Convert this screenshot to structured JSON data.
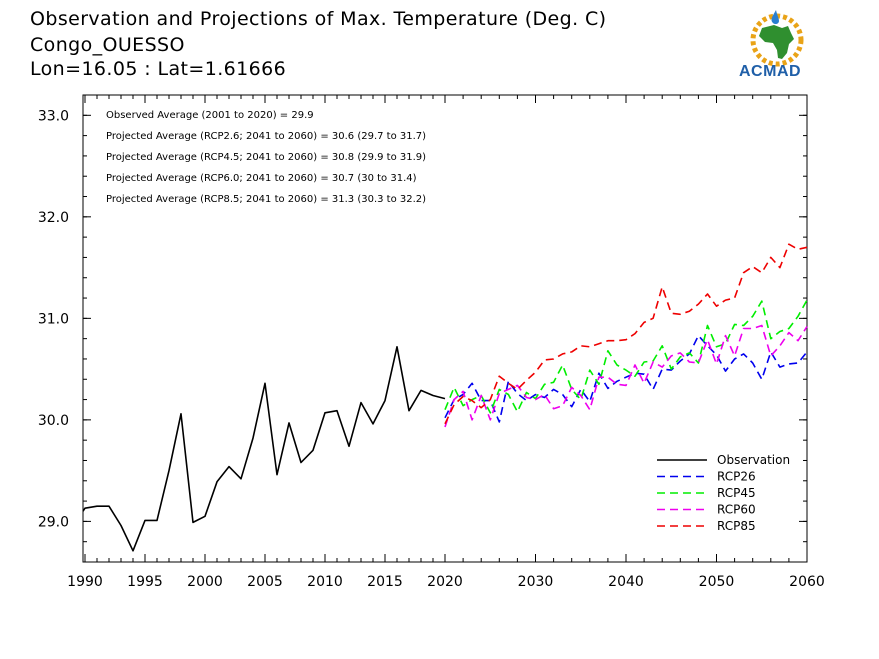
{
  "header": {
    "title": "Observation and Projections of Max. Temperature (Deg. C)",
    "location": "Congo_OUESSO",
    "coords": "Lon=16.05 : Lat=1.61666"
  },
  "logo": {
    "text": "ACMAD"
  },
  "chart_data": {
    "type": "line",
    "xlim": [
      1989,
      2060
    ],
    "ylim": [
      28.6,
      33.2
    ],
    "x_ticks": [
      1990,
      1995,
      2000,
      2005,
      2010,
      2015,
      2020,
      2030,
      2040,
      2050,
      2060
    ],
    "y_ticks": [
      29.0,
      30.0,
      31.0,
      32.0,
      33.0
    ],
    "y_tick_labels": [
      "29.0",
      "30.0",
      "31.0",
      "32.0",
      "33.0"
    ],
    "x_tick_labels": [
      "1990",
      "1995",
      "2000",
      "2005",
      "2010",
      "2015",
      "2020",
      "2030",
      "2040",
      "2050",
      "2060"
    ],
    "annotations": [
      "Observed Average (2001 to 2020) = 29.9",
      "Projected Average (RCP2.6; 2041 to 2060) = 30.6 (29.7 to 31.7)",
      "Projected Average (RCP4.5; 2041 to 2060) = 30.8 (29.9 to 31.9)",
      "Projected Average (RCP6.0; 2041 to 2060) = 30.7 (30 to 31.4)",
      "Projected Average (RCP8.5; 2041 to 2060) = 31.3 (30.3 to 32.2)"
    ],
    "legend_position": "bottom-right",
    "colors": {
      "Observation": "#000000",
      "RCP26": "#0000ee",
      "RCP45": "#00ee00",
      "RCP60": "#ee00ee",
      "RCP85": "#ee0000"
    },
    "series": [
      {
        "name": "Observation",
        "style": "solid",
        "x": [
          1989,
          1990,
          1991,
          1992,
          1993,
          1994,
          1995,
          1996,
          1997,
          1998,
          1999,
          2000,
          2001,
          2002,
          2003,
          2004,
          2005,
          2006,
          2007,
          2008,
          2009,
          2010,
          2011,
          2012,
          2013,
          2014,
          2015,
          2016,
          2017,
          2018,
          2019,
          2020
        ],
        "y": [
          29.1,
          29.13,
          29.15,
          29.15,
          28.96,
          28.71,
          29.01,
          29.01,
          29.5,
          30.06,
          28.99,
          29.05,
          29.39,
          29.54,
          29.42,
          29.82,
          30.36,
          29.46,
          29.97,
          29.58,
          29.7,
          30.07,
          30.09,
          29.74,
          30.17,
          29.96,
          30.19,
          30.72,
          30.09,
          30.29,
          30.24,
          30.21
        ]
      },
      {
        "name": "RCP26",
        "style": "dashed",
        "x": [
          2020,
          2021,
          2022,
          2023,
          2024,
          2025,
          2026,
          2027,
          2028,
          2029,
          2030,
          2031,
          2032,
          2033,
          2034,
          2035,
          2036,
          2037,
          2038,
          2039,
          2040,
          2041,
          2042,
          2043,
          2044,
          2045,
          2046,
          2047,
          2048,
          2049,
          2050,
          2051,
          2052,
          2053,
          2054,
          2055,
          2056,
          2057,
          2058,
          2059,
          2060
        ],
        "y": [
          30.02,
          30.2,
          30.25,
          30.36,
          30.19,
          30.19,
          29.98,
          30.38,
          30.26,
          30.19,
          30.25,
          30.22,
          30.3,
          30.25,
          30.13,
          30.3,
          30.18,
          30.46,
          30.31,
          30.38,
          30.42,
          30.46,
          30.45,
          30.3,
          30.5,
          30.49,
          30.58,
          30.65,
          30.83,
          30.73,
          30.64,
          30.48,
          30.6,
          30.65,
          30.56,
          30.4,
          30.67,
          30.52,
          30.55,
          30.56,
          30.67
        ]
      },
      {
        "name": "RCP45",
        "style": "dashed",
        "x": [
          2020,
          2021,
          2022,
          2023,
          2024,
          2025,
          2026,
          2027,
          2028,
          2029,
          2030,
          2031,
          2032,
          2033,
          2034,
          2035,
          2036,
          2037,
          2038,
          2039,
          2040,
          2041,
          2042,
          2043,
          2044,
          2045,
          2046,
          2047,
          2048,
          2049,
          2050,
          2051,
          2052,
          2053,
          2054,
          2055,
          2056,
          2057,
          2058,
          2059,
          2060
        ],
        "y": [
          30.1,
          30.32,
          30.14,
          30.2,
          30.24,
          30.07,
          30.3,
          30.25,
          30.08,
          30.27,
          30.21,
          30.35,
          30.37,
          30.54,
          30.3,
          30.2,
          30.49,
          30.35,
          30.68,
          30.54,
          30.49,
          30.43,
          30.57,
          30.58,
          30.73,
          30.5,
          30.62,
          30.66,
          30.56,
          30.93,
          30.72,
          30.75,
          30.94,
          30.93,
          31.02,
          31.17,
          30.8,
          30.87,
          30.9,
          31.02,
          31.18
        ]
      },
      {
        "name": "RCP60",
        "style": "dashed",
        "x": [
          2020,
          2021,
          2022,
          2023,
          2024,
          2025,
          2026,
          2027,
          2028,
          2029,
          2030,
          2031,
          2032,
          2033,
          2034,
          2035,
          2036,
          2037,
          2038,
          2039,
          2040,
          2041,
          2042,
          2043,
          2044,
          2045,
          2046,
          2047,
          2048,
          2049,
          2050,
          2051,
          2052,
          2053,
          2054,
          2055,
          2056,
          2057,
          2058,
          2059,
          2060
        ],
        "y": [
          29.93,
          30.2,
          30.28,
          30.0,
          30.24,
          30.0,
          30.26,
          30.3,
          30.34,
          30.22,
          30.2,
          30.25,
          30.11,
          30.14,
          30.32,
          30.24,
          30.1,
          30.42,
          30.42,
          30.35,
          30.34,
          30.54,
          30.36,
          30.57,
          30.52,
          30.63,
          30.66,
          30.57,
          30.56,
          30.79,
          30.55,
          30.83,
          30.63,
          30.9,
          30.9,
          30.93,
          30.63,
          30.73,
          30.86,
          30.78,
          30.92
        ]
      },
      {
        "name": "RCP85",
        "style": "dashed",
        "x": [
          2020,
          2021,
          2022,
          2023,
          2024,
          2025,
          2026,
          2027,
          2028,
          2029,
          2030,
          2031,
          2032,
          2033,
          2034,
          2035,
          2036,
          2037,
          2038,
          2039,
          2040,
          2041,
          2042,
          2043,
          2044,
          2045,
          2046,
          2047,
          2048,
          2049,
          2050,
          2051,
          2052,
          2053,
          2054,
          2055,
          2056,
          2057,
          2058,
          2059,
          2060
        ],
        "y": [
          29.96,
          30.15,
          30.23,
          30.19,
          30.12,
          30.2,
          30.43,
          30.36,
          30.3,
          30.39,
          30.47,
          30.59,
          30.6,
          30.65,
          30.67,
          30.73,
          30.72,
          30.75,
          30.78,
          30.78,
          30.79,
          30.85,
          30.96,
          31.0,
          31.31,
          31.05,
          31.04,
          31.07,
          31.14,
          31.24,
          31.12,
          31.18,
          31.2,
          31.45,
          31.51,
          31.45,
          31.6,
          31.5,
          31.73,
          31.68,
          31.7
        ]
      }
    ]
  }
}
